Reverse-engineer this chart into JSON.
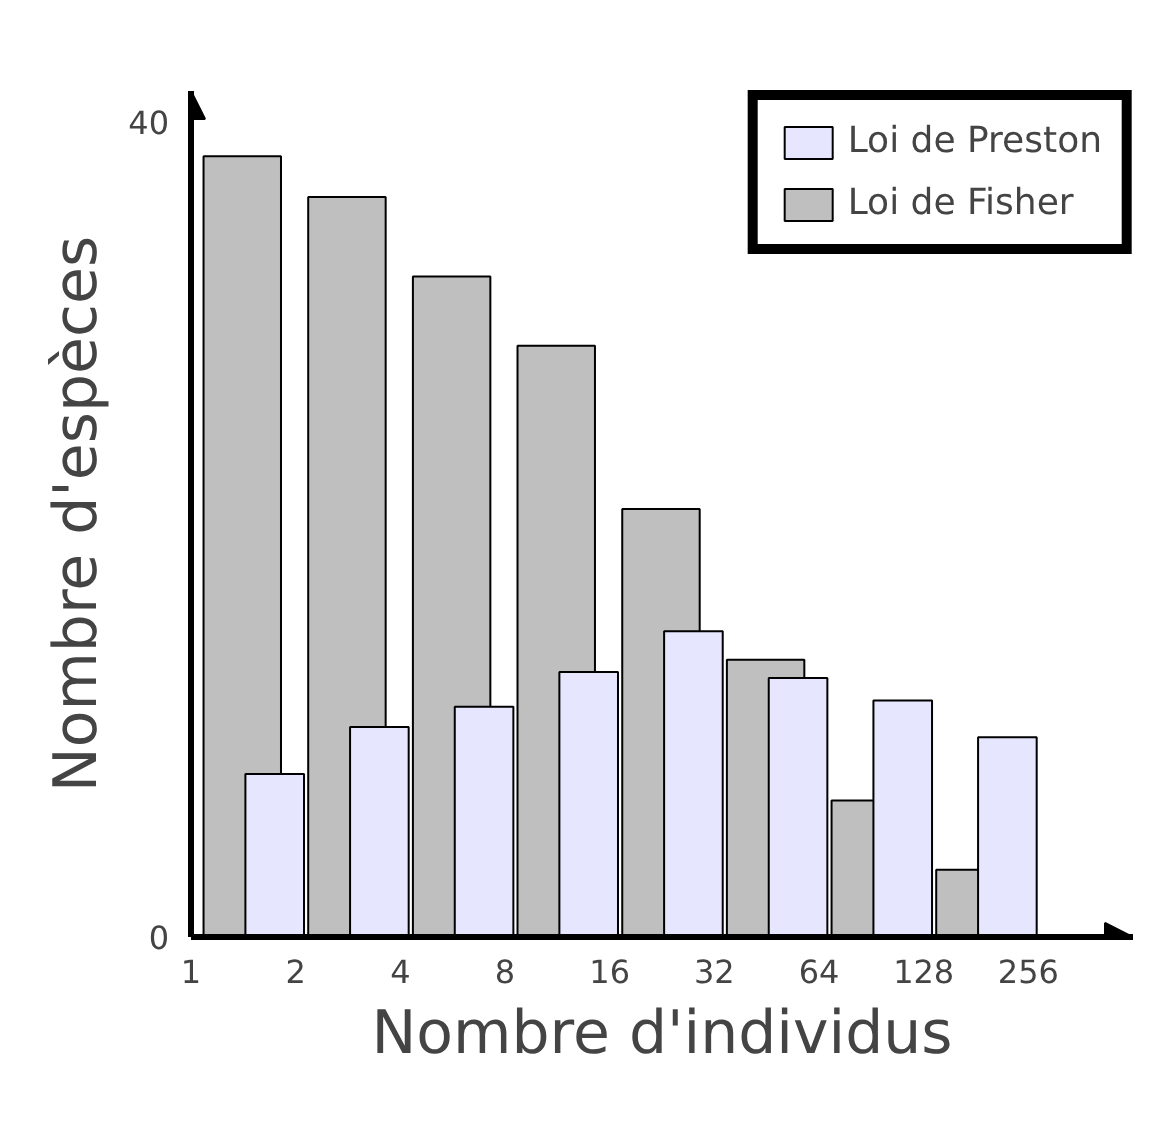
{
  "chart_data": {
    "type": "bar",
    "xlabel": "Nombre d'individus",
    "ylabel": "Nombre d'espèces",
    "log": "x",
    "x": [
      1.414,
      2.828,
      5.657,
      11.31,
      22.63,
      45.25,
      90.51,
      181.0
    ],
    "xlim": [
      1,
      512
    ],
    "xticks": [
      1,
      2,
      4,
      8,
      16,
      32,
      64,
      128,
      256
    ],
    "ylim": [
      0,
      41.5
    ],
    "yticks": [
      0,
      40
    ],
    "series": [
      {
        "name": "Loi de Preston",
        "color": "#e6e6ff",
        "values": [
          8.0,
          10.3,
          11.3,
          13.0,
          15.0,
          12.7,
          11.6,
          9.8
        ]
      },
      {
        "name": "Loi de Fisher",
        "color": "#bfbfbf",
        "values": [
          38.3,
          36.3,
          32.4,
          29.0,
          21.0,
          13.6,
          6.7,
          3.3
        ]
      }
    ],
    "grid": false,
    "legend": "top right"
  }
}
